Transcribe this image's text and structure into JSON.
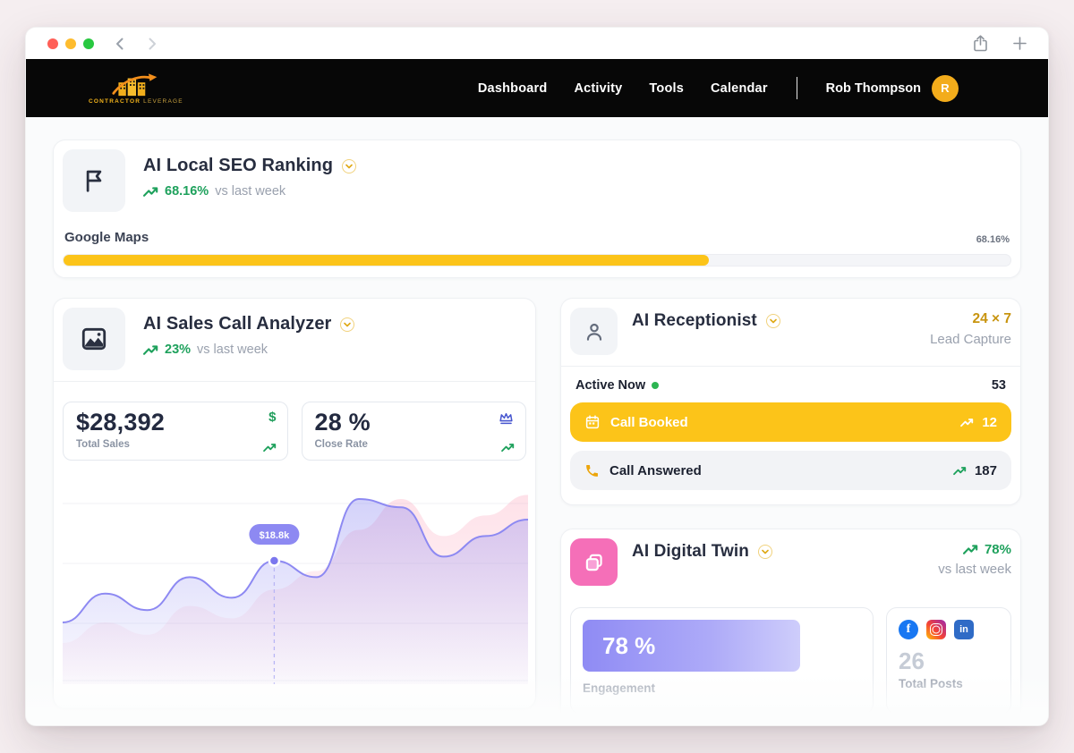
{
  "colors": {
    "accent_yellow": "#FCC419",
    "success_green": "#1EA15C",
    "gold_text": "#C8940F",
    "purple_line": "#8D89F2",
    "pink_icon_bg": "#F56FB8",
    "navbar_black": "#070707"
  },
  "navbar": {
    "logo": {
      "line1": "CONTRACTOR",
      "line2": "LEVERAGE"
    },
    "items": [
      {
        "label": "Dashboard"
      },
      {
        "label": "Activity"
      },
      {
        "label": "Tools"
      },
      {
        "label": "Calendar"
      }
    ],
    "user": {
      "name": "Rob Thompson",
      "initial": "R"
    }
  },
  "seo_card": {
    "title": "AI Local SEO Ranking",
    "delta": "68.16%",
    "delta_label": "vs last week",
    "row_label": "Google Maps",
    "row_value": "68.16%",
    "progress_percent": 68.16
  },
  "sales_card": {
    "title": "AI Sales Call Analyzer",
    "delta": "23%",
    "delta_label": "vs last week",
    "stats": [
      {
        "value": "$28,392",
        "label": "Total Sales",
        "icon": "dollar-icon"
      },
      {
        "value": "28 %",
        "label": "Close Rate",
        "icon": "crown-icon"
      }
    ],
    "chart_data": {
      "type": "area",
      "x_axis_hidden": true,
      "y_axis_hidden": true,
      "grid": true,
      "series": [
        {
          "name": "secondary",
          "color": "#F9A8B8",
          "values": [
            20,
            30,
            24,
            38,
            32,
            46,
            55,
            75,
            90,
            72,
            82,
            92
          ]
        },
        {
          "name": "primary",
          "color": "#8D89F2",
          "values": [
            30,
            44,
            36,
            52,
            42,
            60,
            52,
            90,
            86,
            62,
            72,
            80
          ]
        }
      ],
      "tooltip": {
        "index": 5,
        "label": "$18.8k"
      }
    }
  },
  "receptionist_card": {
    "title": "AI Receptionist",
    "badge_line1": "24 × 7",
    "badge_line2": "Lead Capture",
    "rows": [
      {
        "label": "Active Now",
        "value": "53",
        "status": "online"
      },
      {
        "label": "Call Booked",
        "value": "12",
        "highlight": "yellow"
      },
      {
        "label": "Call Answered",
        "value": "187",
        "highlight": "gray"
      }
    ]
  },
  "digital_twin_card": {
    "title": "AI Digital Twin",
    "delta": "78%",
    "delta_label": "vs last week",
    "engagement_percent": 78,
    "engagement": {
      "value": "78 %",
      "label": "Engagement"
    },
    "posts": {
      "value": "26",
      "label": "Total Posts"
    },
    "social_icons": [
      "facebook",
      "instagram",
      "linkedin"
    ]
  }
}
